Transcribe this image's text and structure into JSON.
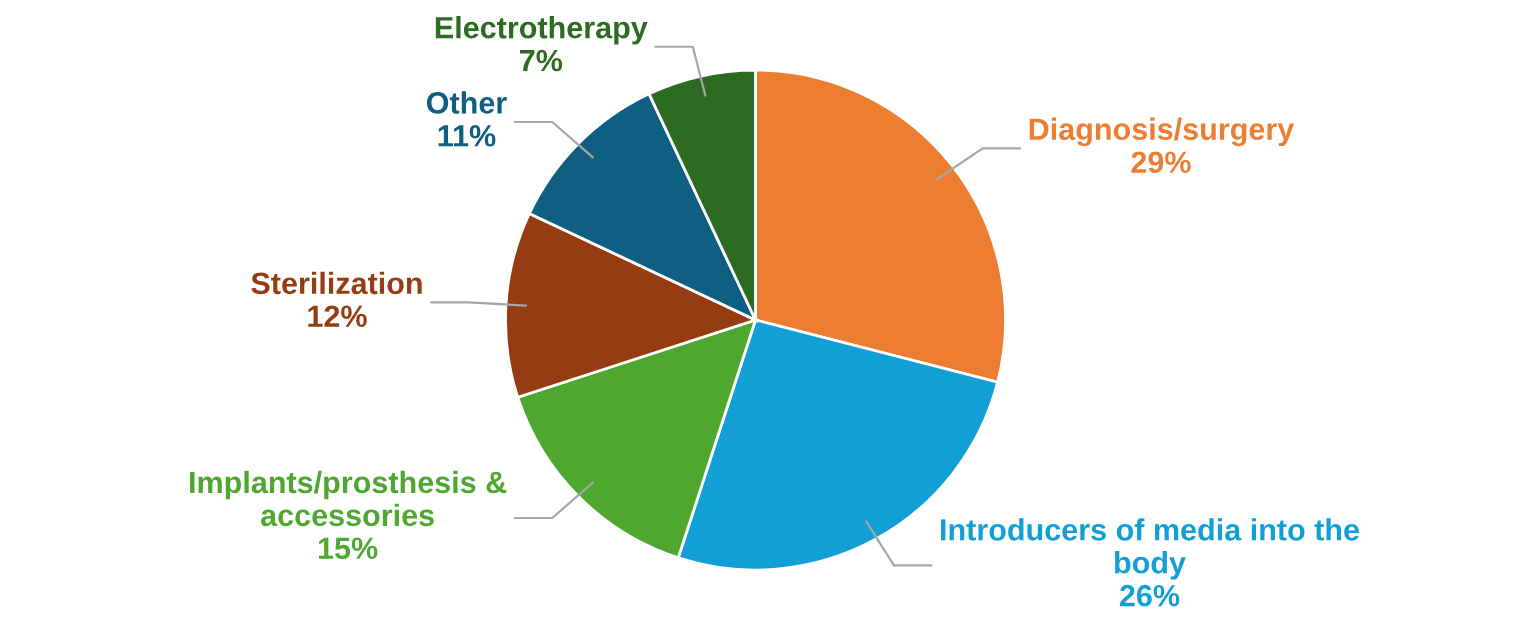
{
  "chart_data": {
    "type": "pie",
    "categories": [
      "Diagnosis/surgery",
      "Introducers of media into the\nbody",
      "Implants/prosthesis &\naccessories",
      "Sterilization",
      "Other",
      "Electrotherapy"
    ],
    "values": [
      29,
      26,
      15,
      12,
      11,
      7
    ],
    "value_labels": [
      "29%",
      "26%",
      "15%",
      "12%",
      "11%",
      "7%"
    ],
    "colors": [
      "#ed7d31",
      "#129fd6",
      "#4ea72e",
      "#963c12",
      "#0e5f82",
      "#2e6b22"
    ]
  }
}
